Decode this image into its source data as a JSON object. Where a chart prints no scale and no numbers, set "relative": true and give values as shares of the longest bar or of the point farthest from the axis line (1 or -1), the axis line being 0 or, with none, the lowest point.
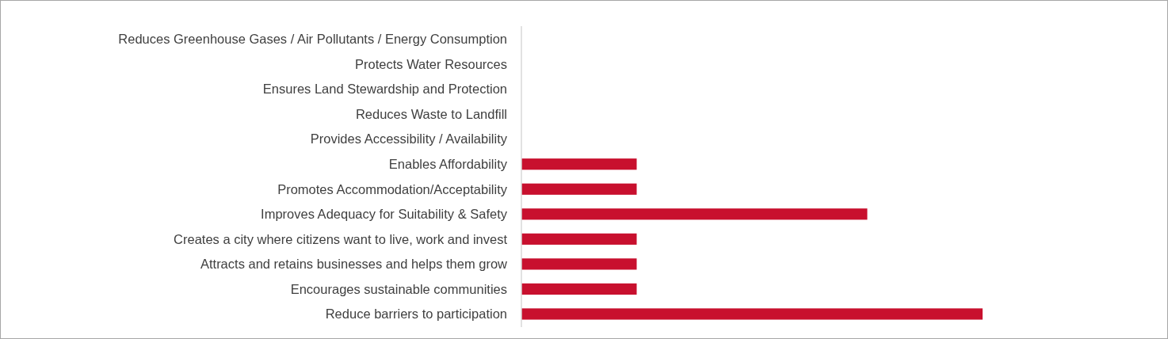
{
  "chart_data": {
    "type": "bar",
    "orientation": "horizontal",
    "relative": true,
    "color": "#c8102e",
    "categories": [
      "Reduces Greenhouse Gases / Air Pollutants / Energy Consumption",
      "Protects Water Resources",
      "Ensures Land Stewardship and Protection",
      "Reduces Waste to Landfill",
      "Provides Accessibility / Availability",
      "Enables Affordability",
      "Promotes Accommodation/Acceptability",
      "Improves Adequacy for Suitability & Safety",
      "Creates a city where citizens want to live, work and invest",
      "Attracts and retains businesses and helps them grow",
      "Encourages sustainable communities",
      "Reduce barriers to participation"
    ],
    "values": [
      0,
      0,
      0,
      0,
      0,
      0.25,
      0.25,
      0.75,
      0.25,
      0.25,
      0.25,
      1
    ]
  }
}
